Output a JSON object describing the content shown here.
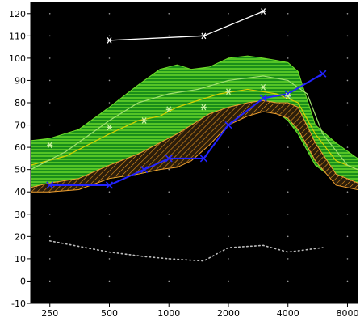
{
  "chart_data": {
    "type": "line",
    "title": "",
    "xlabel": "",
    "ylabel": "",
    "x_scale": "log",
    "xlim": [
      200,
      9000
    ],
    "ylim": [
      -10,
      125
    ],
    "x_ticks": [
      250,
      500,
      1000,
      2000,
      4000,
      8000
    ],
    "x_tick_labels": [
      "250",
      "500",
      "1000",
      "2000",
      "4000",
      "8000"
    ],
    "y_ticks": [
      -10,
      0,
      10,
      20,
      30,
      40,
      50,
      60,
      70,
      80,
      90,
      100,
      110,
      120
    ],
    "y_tick_labels": [
      "-10",
      "0",
      "10",
      "20",
      "30",
      "40",
      "50",
      "60",
      "70",
      "80",
      "90",
      "100",
      "110",
      "120"
    ],
    "grid": "dotted",
    "colors": {
      "plot_bg": "#000000",
      "page_bg": "#ffffff",
      "green_band": "#1fa31f",
      "green_stripes": "#6ddc2a",
      "orange_band": "#3a2a12",
      "orange_stripes": "#e8961e",
      "orange_edge": "#f0a030",
      "blue_line": "#2323ff",
      "white_line": "#ffffff",
      "noise_dots": "#bdbdbd",
      "yellow_line": "#d8d000",
      "light_green_line": "#a0e070",
      "asterisk": "#c8f0a0"
    },
    "bands": [
      {
        "fill": "green_hatched",
        "upper": [
          [
            200,
            63
          ],
          [
            250,
            64
          ],
          [
            350,
            68
          ],
          [
            500,
            78
          ],
          [
            700,
            88
          ],
          [
            900,
            95
          ],
          [
            1100,
            97
          ],
          [
            1300,
            95
          ],
          [
            1600,
            96
          ],
          [
            2000,
            100
          ],
          [
            2500,
            101
          ],
          [
            3000,
            100
          ],
          [
            3500,
            99
          ],
          [
            4000,
            98
          ],
          [
            4500,
            94
          ],
          [
            5500,
            70
          ],
          [
            7000,
            62
          ],
          [
            9000,
            55
          ]
        ],
        "lower": [
          [
            200,
            40
          ],
          [
            250,
            42
          ],
          [
            350,
            43
          ],
          [
            500,
            46
          ],
          [
            700,
            48
          ],
          [
            900,
            50
          ],
          [
            1100,
            52
          ],
          [
            1300,
            55
          ],
          [
            1600,
            62
          ],
          [
            2000,
            72
          ],
          [
            2500,
            78
          ],
          [
            3000,
            78
          ],
          [
            3500,
            76
          ],
          [
            4000,
            72
          ],
          [
            4500,
            66
          ],
          [
            5500,
            52
          ],
          [
            7000,
            45
          ],
          [
            9000,
            42
          ]
        ]
      },
      {
        "fill": "orange_hatched",
        "upper": [
          [
            200,
            42
          ],
          [
            250,
            44
          ],
          [
            350,
            46
          ],
          [
            500,
            52
          ],
          [
            700,
            57
          ],
          [
            900,
            62
          ],
          [
            1100,
            66
          ],
          [
            1300,
            70
          ],
          [
            1600,
            75
          ],
          [
            2000,
            78
          ],
          [
            2500,
            80
          ],
          [
            3000,
            81
          ],
          [
            3500,
            80
          ],
          [
            4000,
            80
          ],
          [
            4500,
            78
          ],
          [
            5500,
            62
          ],
          [
            7000,
            48
          ],
          [
            9000,
            44
          ]
        ],
        "lower": [
          [
            200,
            40
          ],
          [
            250,
            40
          ],
          [
            350,
            41
          ],
          [
            500,
            46
          ],
          [
            700,
            48
          ],
          [
            900,
            50
          ],
          [
            1100,
            51
          ],
          [
            1300,
            54
          ],
          [
            1600,
            61
          ],
          [
            2000,
            70
          ],
          [
            2500,
            74
          ],
          [
            3000,
            76
          ],
          [
            3500,
            75
          ],
          [
            4000,
            73
          ],
          [
            4500,
            68
          ],
          [
            5500,
            54
          ],
          [
            7000,
            43
          ],
          [
            9000,
            41
          ]
        ]
      }
    ],
    "series": [
      {
        "color": "blue_line",
        "marker": "x",
        "points": [
          [
            250,
            43
          ],
          [
            500,
            43
          ],
          [
            750,
            50
          ],
          [
            1000,
            55
          ],
          [
            1500,
            55
          ],
          [
            2000,
            70
          ],
          [
            3000,
            82
          ],
          [
            4000,
            84
          ],
          [
            6000,
            93
          ]
        ],
        "marker_x": [
          250,
          500,
          750,
          1000,
          1500,
          2000,
          3000,
          4000,
          6000
        ]
      },
      {
        "color": "white_line",
        "marker": "asterisk",
        "points": [
          [
            500,
            108
          ],
          [
            1500,
            110
          ],
          [
            3000,
            121
          ]
        ],
        "marker_x": [
          500,
          1500,
          3000
        ]
      },
      {
        "color": "asterisk",
        "marker": "asterisk",
        "points": [
          [
            250,
            61
          ],
          [
            500,
            69
          ],
          [
            750,
            72
          ],
          [
            1000,
            77
          ],
          [
            1500,
            78
          ],
          [
            2000,
            85
          ],
          [
            3000,
            87
          ],
          [
            4000,
            83
          ]
        ],
        "marker_x": [
          250,
          500,
          750,
          1000,
          1500,
          2000,
          3000,
          4000
        ]
      },
      {
        "color": "noise_dots",
        "marker": "dotted",
        "points": [
          [
            250,
            18
          ],
          [
            500,
            13
          ],
          [
            750,
            11
          ],
          [
            1000,
            10
          ],
          [
            1500,
            9
          ],
          [
            2000,
            15
          ],
          [
            3000,
            16
          ],
          [
            4000,
            13
          ],
          [
            6000,
            15
          ]
        ],
        "marker_x": []
      }
    ],
    "overlay_lines": [
      {
        "color": "yellow_line",
        "points": [
          [
            200,
            52
          ],
          [
            300,
            56
          ],
          [
            500,
            66
          ],
          [
            700,
            72
          ],
          [
            900,
            74
          ],
          [
            1100,
            78
          ],
          [
            1400,
            81
          ],
          [
            1800,
            84
          ],
          [
            2500,
            86
          ],
          [
            3500,
            84
          ],
          [
            4500,
            80
          ],
          [
            5500,
            66
          ],
          [
            7000,
            54
          ],
          [
            9000,
            50
          ]
        ]
      },
      {
        "color": "light_green_line",
        "points": [
          [
            200,
            50
          ],
          [
            300,
            58
          ],
          [
            500,
            72
          ],
          [
            700,
            80
          ],
          [
            1000,
            84
          ],
          [
            1400,
            86
          ],
          [
            2000,
            90
          ],
          [
            3000,
            92
          ],
          [
            4000,
            90
          ],
          [
            5000,
            84
          ],
          [
            6000,
            66
          ],
          [
            8000,
            52
          ],
          [
            9000,
            50
          ]
        ]
      }
    ]
  }
}
